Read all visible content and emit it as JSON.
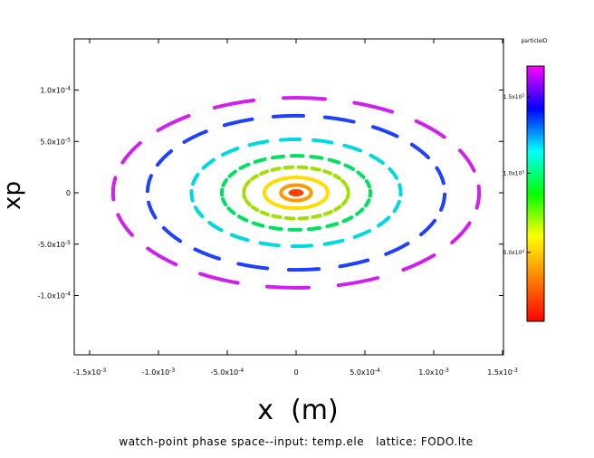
{
  "chart_data": {
    "type": "scatter",
    "title": "",
    "xlabel": "x  (m)",
    "ylabel": "xp",
    "caption": "watch-point phase space--input: temp.ele   lattice: FODO.lte",
    "xlim": [
      -0.0015,
      0.0015
    ],
    "ylim": [
      -0.0001,
      0.0001
    ],
    "x_ticks": [
      {
        "value": -0.0015,
        "label": "-1.5x10^-3"
      },
      {
        "value": -0.001,
        "label": "-1.0x10^-3"
      },
      {
        "value": -0.0005,
        "label": "-5.0x10^-4"
      },
      {
        "value": 0,
        "label": "0"
      },
      {
        "value": 0.0005,
        "label": "5.0x10^-4"
      },
      {
        "value": 0.001,
        "label": "1.0x10^-3"
      },
      {
        "value": 0.0015,
        "label": "1.5x10^-3"
      }
    ],
    "y_ticks": [
      {
        "value": 0.0001,
        "label": "1.0x10^-4"
      },
      {
        "value": 5e-05,
        "label": "5.0x10^-5"
      },
      {
        "value": 0,
        "label": "0"
      },
      {
        "value": -5e-05,
        "label": "-5.0x10^-5"
      },
      {
        "value": -0.0001,
        "label": "-1.0x10^-4"
      }
    ],
    "colorbar": {
      "label": "particleID",
      "colormap": [
        "#ff0000",
        "#ff8000",
        "#ffff00",
        "#00ff00",
        "#00ffff",
        "#0000ff",
        "#ff00ff"
      ],
      "ticks": [
        {
          "fraction": 0.27,
          "label": "5.0x10^4"
        },
        {
          "fraction": 0.58,
          "label": "1.0x10^5"
        },
        {
          "fraction": 0.88,
          "label": "1.5x10^5"
        }
      ]
    },
    "series": [
      {
        "rx": 5.5e-05,
        "ry": 3.6e-06,
        "color": "#ff4000",
        "segments": 0,
        "filled": true
      },
      {
        "rx": 0.00011,
        "ry": 7.5e-06,
        "color": "#ff9900",
        "segments": 0
      },
      {
        "rx": 0.00023,
        "ry": 1.5e-05,
        "color": "#ffdd00",
        "segments": 0
      },
      {
        "rx": 0.00038,
        "ry": 2.5e-05,
        "color": "#a0e000",
        "segments": 24
      },
      {
        "rx": 0.00054,
        "ry": 3.6e-05,
        "color": "#00e060",
        "segments": 24
      },
      {
        "rx": 0.00076,
        "ry": 5.2e-05,
        "color": "#00d8e0",
        "segments": 20
      },
      {
        "rx": 0.00108,
        "ry": 7.5e-05,
        "color": "#2040ff",
        "segments": 18
      },
      {
        "rx": 0.00133,
        "ry": 9.25e-05,
        "color": "#d020f0",
        "segments": 16
      }
    ]
  }
}
